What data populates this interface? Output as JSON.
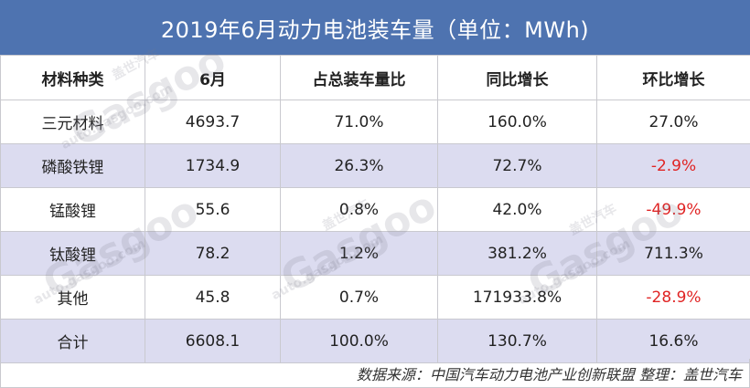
{
  "title": "2019年6月动力电池装车量（单位：MWh)",
  "table": {
    "headers": [
      "材料种类",
      "6月",
      "占总装车量比",
      "同比增长",
      "环比增长"
    ],
    "rows": [
      {
        "name": "三元材料",
        "june": "4693.7",
        "share": "71.0%",
        "yoy": "160.0%",
        "mom": "27.0%",
        "mom_negative": false
      },
      {
        "name": "磷酸铁锂",
        "june": "1734.9",
        "share": "26.3%",
        "yoy": "72.7%",
        "mom": "-2.9%",
        "mom_negative": true
      },
      {
        "name": "锰酸锂",
        "june": "55.6",
        "share": "0.8%",
        "yoy": "42.0%",
        "mom": "-49.9%",
        "mom_negative": true
      },
      {
        "name": "钛酸锂",
        "june": "78.2",
        "share": "1.2%",
        "yoy": "381.2%",
        "mom": "711.3%",
        "mom_negative": false
      },
      {
        "name": "其他",
        "june": "45.8",
        "share": "0.7%",
        "yoy": "171933.8%",
        "mom": "-28.9%",
        "mom_negative": true
      },
      {
        "name": "合计",
        "june": "6608.1",
        "share": "100.0%",
        "yoy": "130.7%",
        "mom": "16.6%",
        "mom_negative": false
      }
    ]
  },
  "footer": "数据来源：中国汽车动力电池产业创新联盟 整理：盖世汽车",
  "watermark": {
    "brand": "Gasgoo",
    "cn": "盖世汽车",
    "url": "auto.gasgoo.com"
  },
  "colors": {
    "header_bg": "#4e73b0",
    "alt_row_bg": "#dcdcf0",
    "negative": "#e02424"
  }
}
